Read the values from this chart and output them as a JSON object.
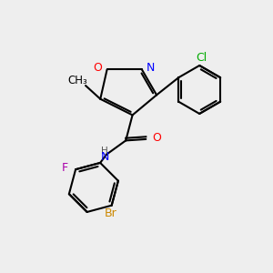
{
  "bg_color": "#eeeeee",
  "bond_color": "#000000",
  "atom_colors": {
    "O": "#ff0000",
    "N": "#0000ff",
    "Cl": "#00aa00",
    "F": "#aa00aa",
    "Br": "#cc8800",
    "H": "#555555",
    "C": "#000000"
  },
  "figsize": [
    3.0,
    3.0
  ],
  "dpi": 100
}
